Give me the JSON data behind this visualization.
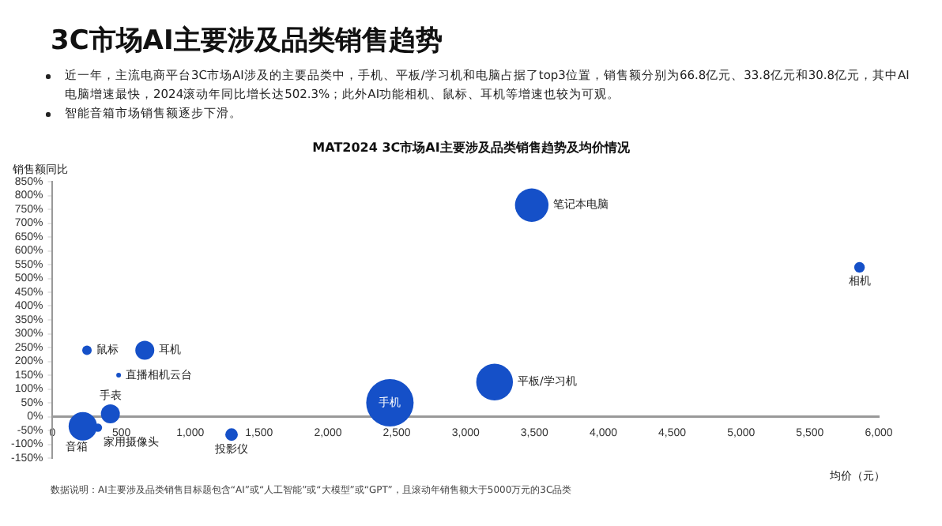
{
  "chart_data": {
    "type": "bubble",
    "title": "3C市场AI主要涉及品类销售趋势",
    "subtitle": "MAT2024 3C市场AI主要涉及品类销售趋势及均价情况",
    "xlabel": "均价（元）",
    "ylabel": "销售额同比",
    "annotations": [
      "近一年，主流电商平台3C市场AI涉及的主要品类中，手机、平板/学习机和电脑占据了top3位置，销售额分别为66.8亿元、33.8亿元和30.8亿元，其中AI电脑增速最快，2024滚动年同比增长达502.3%；此外AI功能相机、鼠标、耳机等增速也较为可观。",
      "智能音箱市场销售额逐步下滑。",
      "数据说明：AI主要涉及品类销售目标题包含“AI”或“人工智能”或“大模型”或“GPT”，且滚动年销售额大于5000万元的3C品类"
    ],
    "xlim": [
      0,
      6000
    ],
    "xticks": [
      0,
      500,
      {
        "value": 1000,
        "label": "1,000"
      },
      {
        "value": 1500,
        "label": "1,500"
      },
      {
        "value": 2000,
        "label": "2,000"
      },
      {
        "value": 2500,
        "label": "2,500"
      },
      {
        "value": 3000,
        "label": "3,000"
      },
      {
        "value": 3500,
        "label": "3,500"
      },
      {
        "value": 4000,
        "label": "4,000"
      },
      {
        "value": 4500,
        "label": "4,500"
      },
      {
        "value": 5000,
        "label": "5,000"
      },
      {
        "value": 5500,
        "label": "5,500"
      },
      {
        "value": 6000,
        "label": "6,000"
      }
    ],
    "ylim": [
      -150,
      850
    ],
    "yticks": [
      {
        "value": -150,
        "label": "-150%"
      },
      {
        "value": -100,
        "label": "-100%"
      },
      {
        "value": -50,
        "label": "-50%"
      },
      {
        "value": 0,
        "label": "0%"
      },
      {
        "value": 50,
        "label": "50%"
      },
      {
        "value": 100,
        "label": "100%"
      },
      {
        "value": 150,
        "label": "150%"
      },
      {
        "value": 200,
        "label": "200%"
      },
      {
        "value": 250,
        "label": "250%"
      },
      {
        "value": 300,
        "label": "300%"
      },
      {
        "value": 350,
        "label": "350%"
      },
      {
        "value": 400,
        "label": "400%"
      },
      {
        "value": 450,
        "label": "450%"
      },
      {
        "value": 500,
        "label": "500%"
      },
      {
        "value": 550,
        "label": "550%"
      },
      {
        "value": 600,
        "label": "600%"
      },
      {
        "value": 650,
        "label": "650%"
      },
      {
        "value": 700,
        "label": "700%"
      },
      {
        "value": 750,
        "label": "750%"
      },
      {
        "value": 800,
        "label": "800%"
      },
      {
        "value": 850,
        "label": "850%"
      }
    ],
    "grid": false,
    "legend": false,
    "series": [
      {
        "name": "鼠标",
        "color": "#1550c8",
        "x": [
          250
        ],
        "values": [
          240
        ],
        "sizes": [
          0.04
        ]
      },
      {
        "name": "耳机",
        "color": "#1550c8",
        "x": [
          670
        ],
        "values": [
          240
        ],
        "sizes": [
          0.16
        ]
      },
      {
        "name": "直播相机云台",
        "color": "#1550c8",
        "x": [
          480
        ],
        "values": [
          150
        ],
        "sizes": [
          0.01
        ]
      },
      {
        "name": "手表",
        "color": "#1550c8",
        "x": [
          420
        ],
        "values": [
          10
        ],
        "sizes": [
          0.16
        ]
      },
      {
        "name": "音箱",
        "color": "#1550c8",
        "x": [
          220
        ],
        "values": [
          -35
        ],
        "sizes": [
          0.36
        ]
      },
      {
        "name": "家用摄像头",
        "color": "#1550c8",
        "x": [
          330
        ],
        "values": [
          -40
        ],
        "sizes": [
          0.03
        ]
      },
      {
        "name": "投影仪",
        "color": "#1550c8",
        "x": [
          1300
        ],
        "values": [
          -65
        ],
        "sizes": [
          0.07
        ]
      },
      {
        "name": "手机",
        "color": "#1550c8",
        "x": [
          2450
        ],
        "values": [
          50
        ],
        "sizes": [
          1
        ]
      },
      {
        "name": "平板/学习机",
        "color": "#1550c8",
        "x": [
          3210
        ],
        "values": [
          125
        ],
        "sizes": [
          0.6
        ]
      },
      {
        "name": "笔记本电脑",
        "color": "#1550c8",
        "x": [
          3480
        ],
        "values": [
          765
        ],
        "sizes": [
          0.5
        ]
      },
      {
        "name": "相机",
        "color": "#1550c8",
        "x": [
          5860
        ],
        "values": [
          540
        ],
        "sizes": [
          0.05
        ]
      }
    ]
  }
}
